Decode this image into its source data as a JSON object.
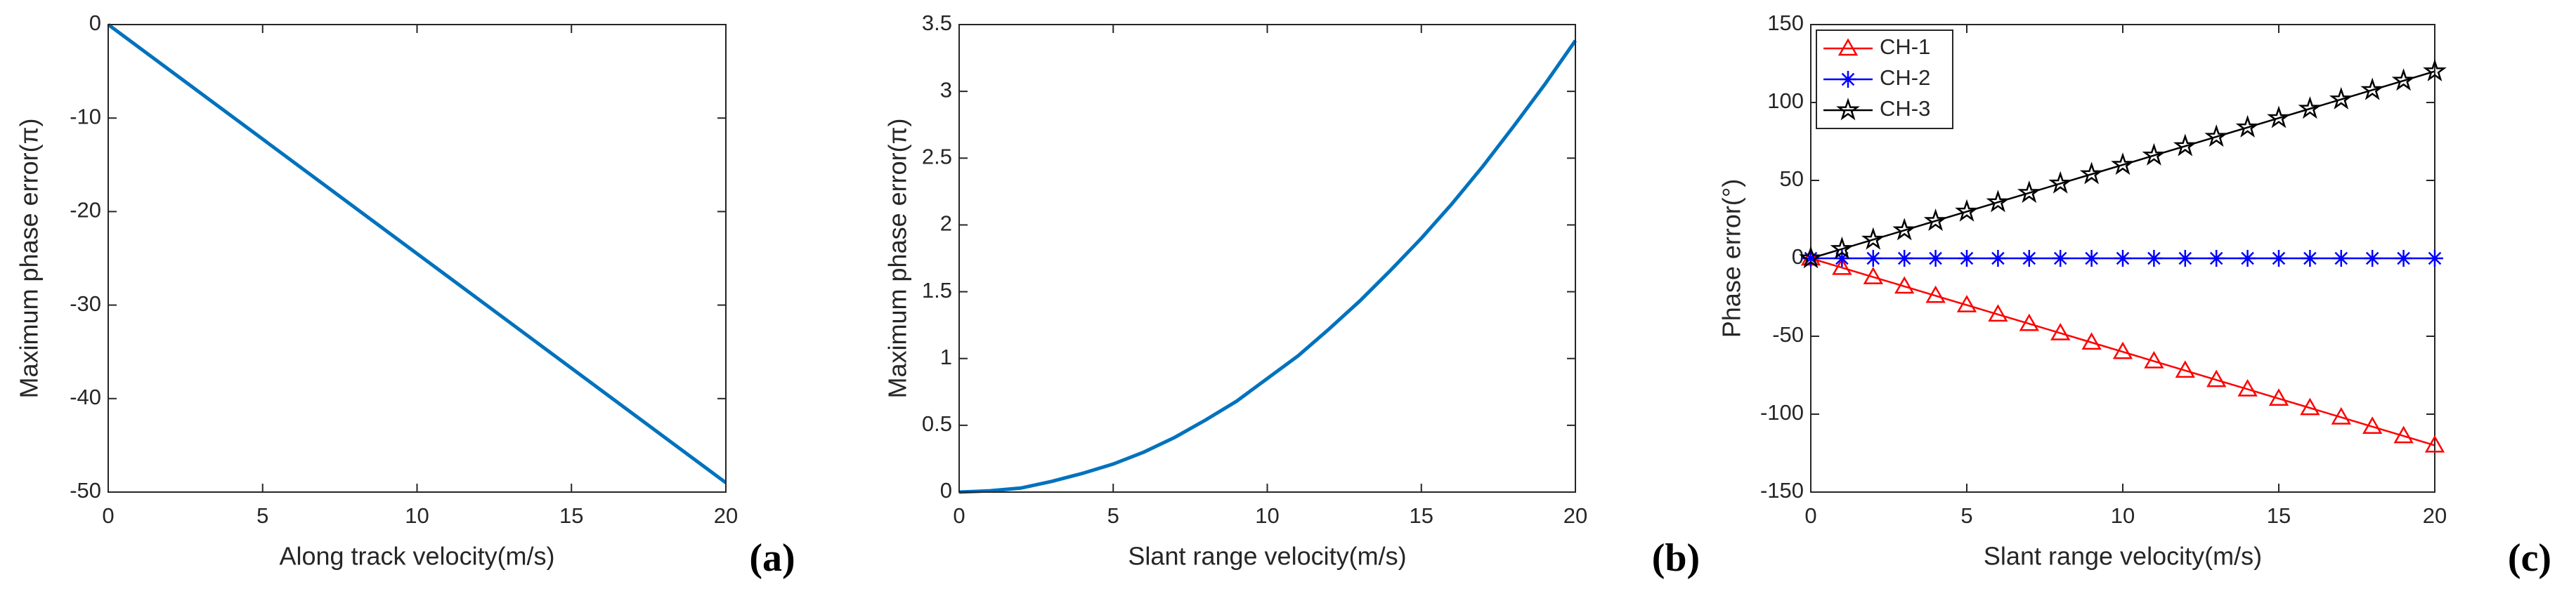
{
  "chart_data": [
    {
      "type": "line",
      "xlabel": "Along track velocity(m/s)",
      "ylabel": "Maximum phase error(π)",
      "panel_label": "(a)",
      "x": [
        0,
        20
      ],
      "series": [
        {
          "color": "#0072bd",
          "values": [
            0,
            -49
          ]
        }
      ],
      "xlim": [
        0,
        20
      ],
      "xticks": [
        0,
        5,
        10,
        15,
        20
      ],
      "ylim": [
        -50,
        0
      ],
      "yticks": [
        -50,
        -40,
        -30,
        -20,
        -10,
        0
      ]
    },
    {
      "type": "line",
      "xlabel": "Slant range velocity(m/s)",
      "ylabel": "Maximum phase error(π)",
      "panel_label": "(b)",
      "x": [
        0,
        1,
        2,
        3,
        4,
        5,
        6,
        7,
        8,
        9,
        10,
        11,
        12,
        13,
        14,
        15,
        16,
        17,
        18,
        19,
        20
      ],
      "series": [
        {
          "color": "#0072bd",
          "values": [
            0,
            0.01,
            0.03,
            0.08,
            0.14,
            0.21,
            0.3,
            0.41,
            0.54,
            0.68,
            0.85,
            1.02,
            1.22,
            1.43,
            1.66,
            1.9,
            2.16,
            2.44,
            2.74,
            3.05,
            3.38
          ]
        }
      ],
      "xlim": [
        0,
        20
      ],
      "xticks": [
        0,
        5,
        10,
        15,
        20
      ],
      "ylim": [
        0,
        3.5
      ],
      "yticks": [
        0,
        0.5,
        1,
        1.5,
        2,
        2.5,
        3,
        3.5
      ]
    },
    {
      "type": "line",
      "xlabel": "Slant range velocity(m/s)",
      "ylabel": "Phase error(°)",
      "panel_label": "(c)",
      "legend": "upper left",
      "x": [
        0,
        1,
        2,
        3,
        4,
        5,
        6,
        7,
        8,
        9,
        10,
        11,
        12,
        13,
        14,
        15,
        16,
        17,
        18,
        19,
        20
      ],
      "series": [
        {
          "name": "CH-1",
          "color": "#ff0000",
          "marker": "triangle",
          "values": [
            0,
            -6,
            -12,
            -18,
            -24,
            -30,
            -36,
            -42,
            -48,
            -54,
            -60,
            -66,
            -72,
            -78,
            -84,
            -90,
            -96,
            -102,
            -108,
            -114,
            -120
          ]
        },
        {
          "name": "CH-2",
          "color": "#0000ff",
          "marker": "asterisk",
          "values": [
            0,
            0,
            0,
            0,
            0,
            0,
            0,
            0,
            0,
            0,
            0,
            0,
            0,
            0,
            0,
            0,
            0,
            0,
            0,
            0,
            0
          ]
        },
        {
          "name": "CH-3",
          "color": "#000000",
          "marker": "star",
          "values": [
            0,
            6,
            12,
            18,
            24,
            30,
            36,
            42,
            48,
            54,
            60,
            66,
            72,
            78,
            84,
            90,
            96,
            102,
            108,
            114,
            120
          ]
        }
      ],
      "xlim": [
        0,
        20
      ],
      "xticks": [
        0,
        5,
        10,
        15,
        20
      ],
      "ylim": [
        -150,
        150
      ],
      "yticks": [
        -150,
        -100,
        -50,
        0,
        50,
        100,
        150
      ]
    }
  ]
}
